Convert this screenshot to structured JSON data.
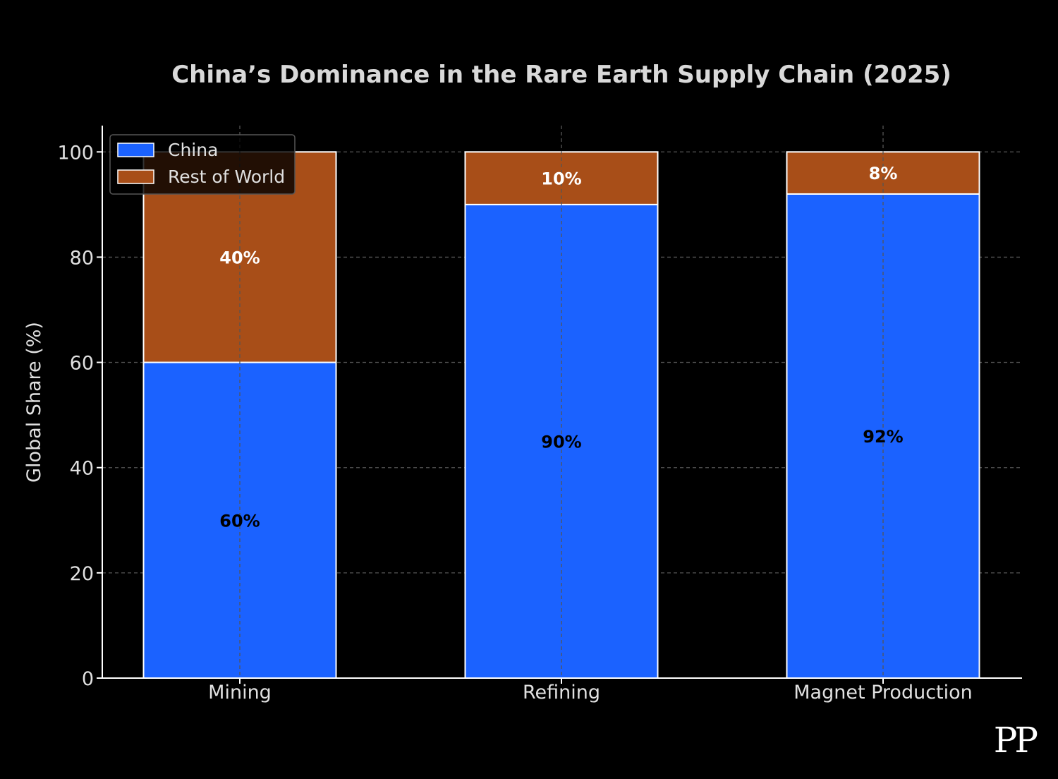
{
  "chart_data": {
    "type": "bar",
    "stacked": true,
    "title": "China’s Dominance in the Rare Earth Supply Chain (2025)",
    "xlabel": "",
    "ylabel": "Global Share (%)",
    "ylim": [
      0,
      105
    ],
    "yticks": [
      0,
      20,
      40,
      60,
      80,
      100
    ],
    "grid": true,
    "legend_position": "top-left",
    "categories": [
      "Mining",
      "Refining",
      "Magnet Production"
    ],
    "series": [
      {
        "name": "China",
        "values": [
          60,
          90,
          92
        ],
        "labels": [
          "60%",
          "90%",
          "92%"
        ],
        "color": "#1b62ff",
        "label_color": "#000000"
      },
      {
        "name": "Rest of World",
        "values": [
          40,
          10,
          8
        ],
        "labels": [
          "40%",
          "10%",
          "8%"
        ],
        "color": "#a84e18",
        "label_color": "#ffffff"
      }
    ]
  },
  "watermark": "PP",
  "colors": {
    "background": "#000000",
    "text": "#e0e0e0",
    "title": "#d9d9d9",
    "axis": "#ffffff",
    "grid": "#555555",
    "bar_edge": "#ffffff"
  }
}
